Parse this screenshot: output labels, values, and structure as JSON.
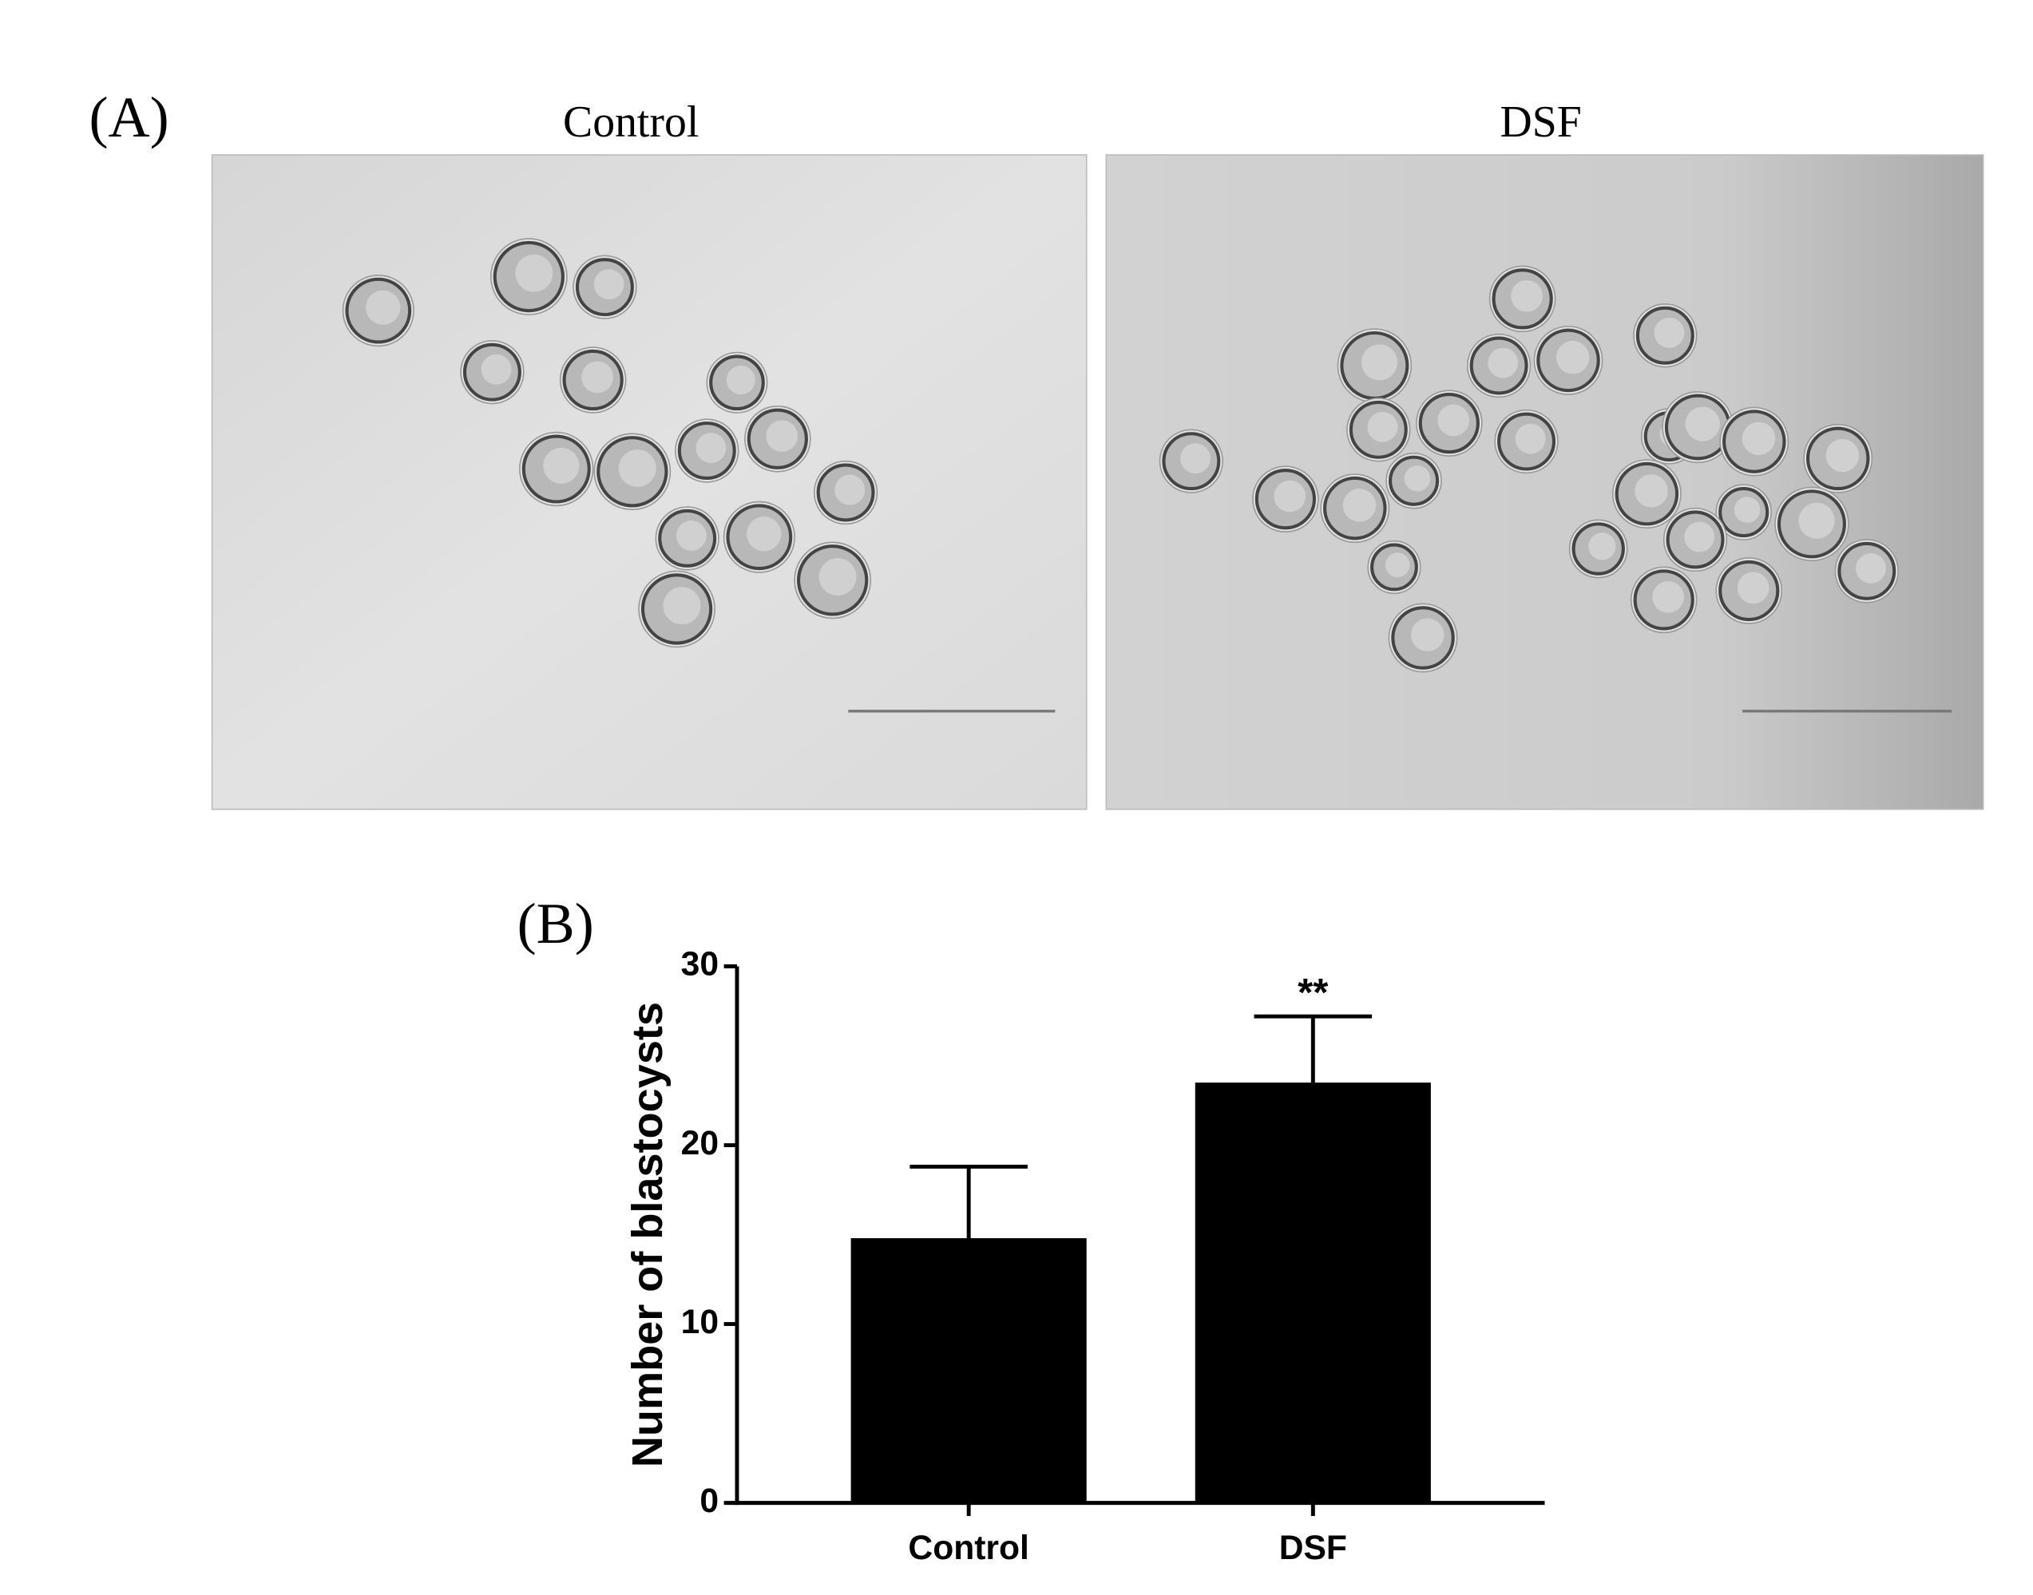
{
  "panel_labels": [
    "(A)",
    "(B)"
  ],
  "images": [
    {
      "title": "Control"
    },
    {
      "title": "DSF"
    }
  ],
  "chart_data": {
    "type": "bar",
    "categories": [
      "Control",
      "DSF"
    ],
    "values": [
      14.8,
      23.5
    ],
    "errors": [
      4.0,
      3.7
    ],
    "color": "#000000",
    "y_label": "Number of blastocysts",
    "ylim": [
      0,
      30
    ],
    "yticks": [
      0,
      10,
      20,
      30
    ],
    "annotations": [
      {
        "text": "**",
        "x": "DSF"
      }
    ]
  }
}
